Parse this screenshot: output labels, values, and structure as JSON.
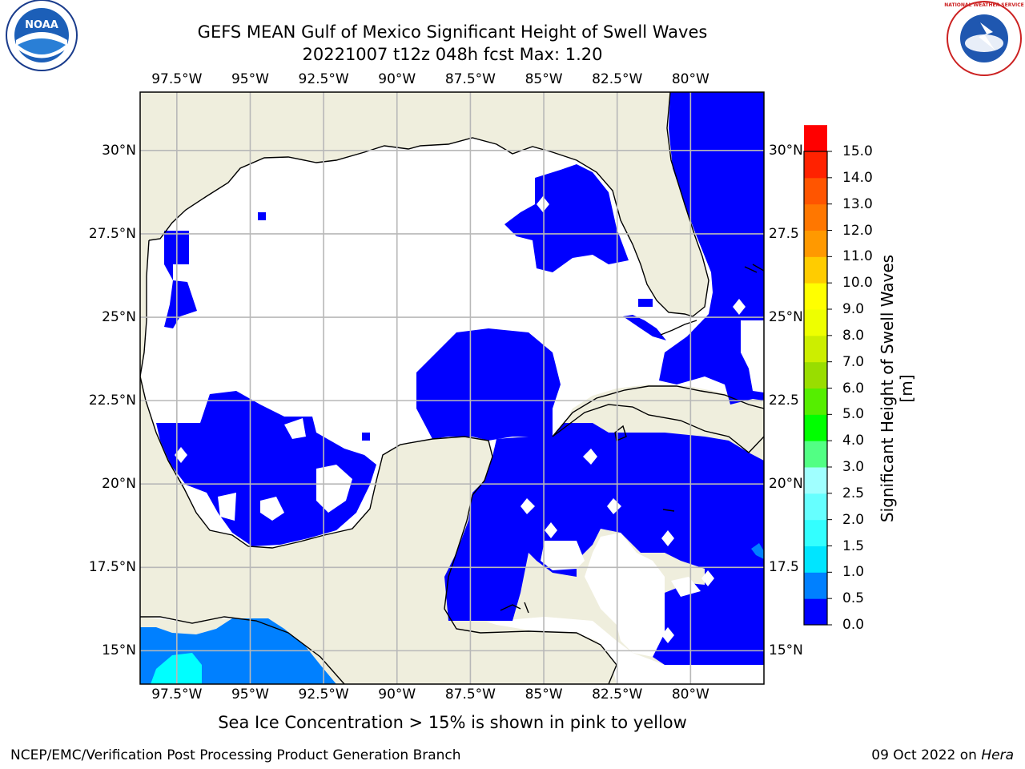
{
  "titles": {
    "line1": "GEFS MEAN Gulf of Mexico Significant Height of Swell Waves",
    "line2": "20221007 t12z 048h fcst   Max: 1.20"
  },
  "map": {
    "lon_range": [
      -98.75,
      -77.5
    ],
    "lat_range": [
      14.0,
      31.75
    ],
    "lon_ticks": [
      {
        "value": -97.5,
        "label": "97.5°W"
      },
      {
        "value": -95,
        "label": "95°W"
      },
      {
        "value": -92.5,
        "label": "92.5°W"
      },
      {
        "value": -90,
        "label": "90°W"
      },
      {
        "value": -87.5,
        "label": "87.5°W"
      },
      {
        "value": -85,
        "label": "85°W"
      },
      {
        "value": -82.5,
        "label": "82.5°W"
      },
      {
        "value": -80,
        "label": "80°W"
      }
    ],
    "lat_ticks": [
      {
        "value": 30,
        "label": "30°N"
      },
      {
        "value": 27.5,
        "label": "27.5°N"
      },
      {
        "value": 25,
        "label": "25°N"
      },
      {
        "value": 22.5,
        "label": "22.5°N"
      },
      {
        "value": 20,
        "label": "20°N"
      },
      {
        "value": 17.5,
        "label": "17.5°N"
      },
      {
        "value": 15,
        "label": "15°N"
      }
    ],
    "right_lat_labels": [
      "30°N",
      "27.5",
      "25°N",
      "22.5",
      "20°N",
      "17.5",
      "15°N"
    ],
    "colors": {
      "land": "#efeedd",
      "ocean_nodata": "#ffffff",
      "grid": "#b8b8b8",
      "coast": "#000000"
    }
  },
  "colorbar": {
    "label": "Significant Height of Swell Waves [m]",
    "ticks": [
      "0.0",
      "0.5",
      "1.0",
      "1.5",
      "2.0",
      "2.5",
      "3.0",
      "4.0",
      "5.0",
      "6.0",
      "7.0",
      "8.0",
      "9.0",
      "10.0",
      "11.0",
      "12.0",
      "13.0",
      "14.0",
      "15.0"
    ],
    "colors": [
      "#0000ff",
      "#0080ff",
      "#00e5ff",
      "#33ffff",
      "#66ffff",
      "#a0ffff",
      "#52ff84",
      "#00ff00",
      "#55ee00",
      "#99dd00",
      "#ccee00",
      "#eeff00",
      "#ffff00",
      "#ffcc00",
      "#ff9900",
      "#ff7700",
      "#ff5500",
      "#ff2200",
      "#ff0000"
    ]
  },
  "footer": {
    "note": "Sea Ice Concentration > 15% is shown in pink to yellow",
    "credit_left": "NCEP/EMC/Verification Post Processing Product Generation Branch",
    "credit_date": "09 Oct 2022 on ",
    "credit_machine": "Hera"
  },
  "logos": {
    "left_text": "NOAA",
    "right_text": "NATIONAL WEATHER SERVICE"
  }
}
